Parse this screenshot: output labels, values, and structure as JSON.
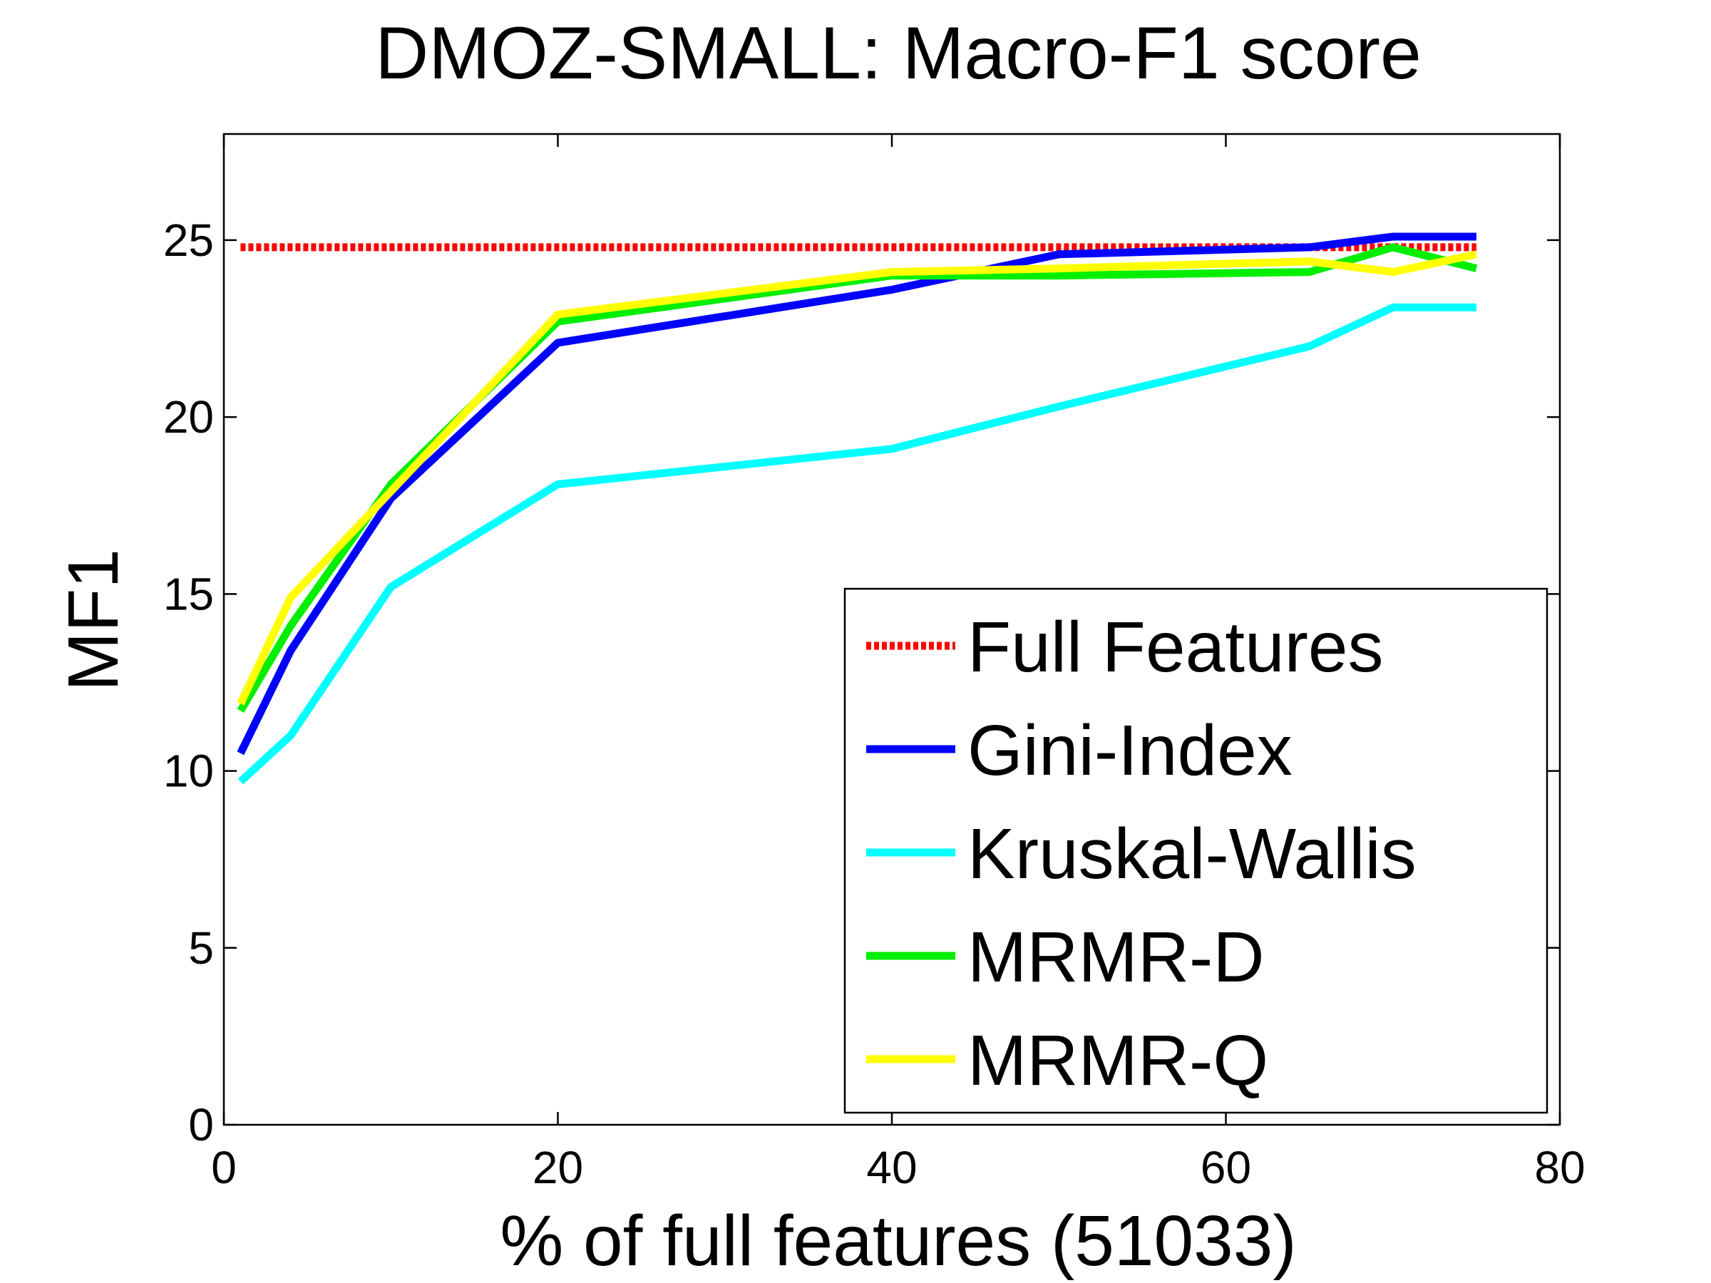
{
  "chart_data": {
    "type": "line",
    "title": "DMOZ-SMALL: Macro-F1 score",
    "xlabel": "% of full features (51033)",
    "ylabel": "MF1",
    "xlim": [
      0,
      80
    ],
    "ylim": [
      0,
      28
    ],
    "xticks": [
      0,
      20,
      40,
      60,
      80
    ],
    "yticks": [
      0,
      5,
      10,
      15,
      20,
      25
    ],
    "legend_position": "bottom-right",
    "series": [
      {
        "name": "Full Features",
        "color": "#ff0000",
        "style": "dotted",
        "x": [
          1,
          75
        ],
        "y": [
          24.8,
          24.8
        ]
      },
      {
        "name": "Gini-Index",
        "color": "#0000ff",
        "style": "solid",
        "x": [
          1,
          4,
          10,
          20,
          40,
          50,
          65,
          70,
          75
        ],
        "y": [
          10.5,
          13.4,
          17.7,
          22.1,
          23.6,
          24.6,
          24.8,
          25.1,
          25.1
        ]
      },
      {
        "name": "Kruskal-Wallis",
        "color": "#00ffff",
        "style": "solid",
        "x": [
          1,
          4,
          10,
          20,
          40,
          50,
          65,
          70,
          75
        ],
        "y": [
          9.7,
          11.0,
          15.2,
          18.1,
          19.1,
          20.3,
          22.0,
          23.1,
          23.1
        ]
      },
      {
        "name": "MRMR-D",
        "color": "#00ee00",
        "style": "solid",
        "x": [
          1,
          4,
          10,
          20,
          40,
          50,
          65,
          70,
          75
        ],
        "y": [
          11.7,
          14.1,
          18.1,
          22.7,
          24.0,
          24.0,
          24.1,
          24.8,
          24.2
        ]
      },
      {
        "name": "MRMR-Q",
        "color": "#ffff00",
        "style": "solid",
        "x": [
          1,
          4,
          10,
          20,
          40,
          50,
          65,
          70,
          75
        ],
        "y": [
          11.9,
          14.9,
          17.9,
          22.9,
          24.1,
          24.2,
          24.4,
          24.1,
          24.6
        ]
      }
    ]
  }
}
